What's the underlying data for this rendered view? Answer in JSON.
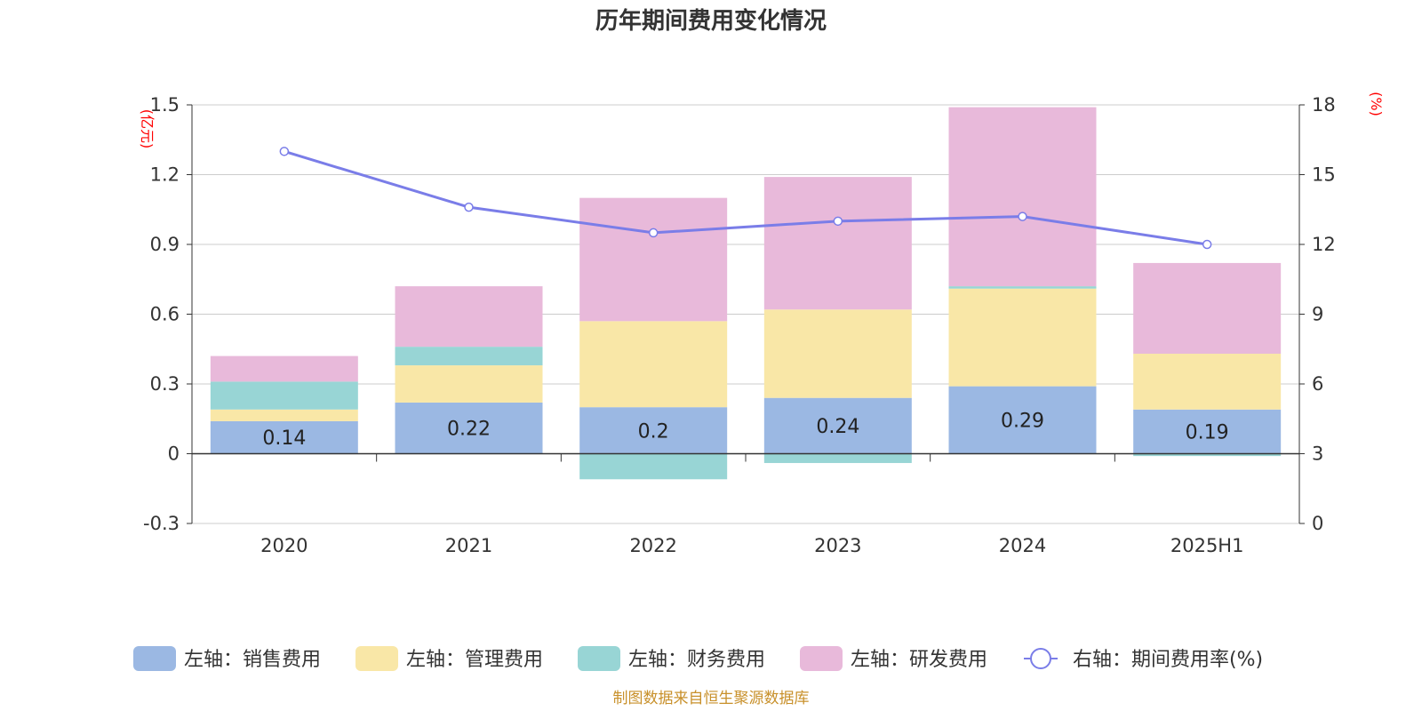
{
  "chart_data": {
    "type": "bar",
    "title": "历年期间费用变化情况",
    "categories": [
      "2020",
      "2021",
      "2022",
      "2023",
      "2024",
      "2025H1"
    ],
    "y_left": {
      "unit": "(亿元)",
      "range": [
        -0.3,
        1.5
      ],
      "ticks": [
        "-0.3",
        "0",
        "0.3",
        "0.6",
        "0.9",
        "1.2",
        "1.5"
      ]
    },
    "y_right": {
      "unit": "(%)",
      "range": [
        0,
        18
      ],
      "ticks": [
        "0",
        "3",
        "6",
        "9",
        "12",
        "15",
        "18"
      ]
    },
    "series": [
      {
        "name": "左轴：销售费用",
        "type": "bar",
        "stack": true,
        "color": "#9bb8e3",
        "values": [
          0.14,
          0.22,
          0.2,
          0.24,
          0.29,
          0.19
        ],
        "labels": [
          "0.14",
          "0.22",
          "0.2",
          "0.24",
          "0.29",
          "0.19"
        ]
      },
      {
        "name": "左轴：管理费用",
        "type": "bar",
        "stack": true,
        "color": "#f9e7a7",
        "values": [
          0.05,
          0.16,
          0.37,
          0.38,
          0.42,
          0.24
        ]
      },
      {
        "name": "左轴：财务费用",
        "type": "bar",
        "stack": true,
        "color": "#98d5d5",
        "values": [
          0.12,
          0.08,
          -0.11,
          -0.04,
          0.01,
          -0.01
        ]
      },
      {
        "name": "左轴：研发费用",
        "type": "bar",
        "stack": true,
        "color": "#e8b9da",
        "values": [
          0.11,
          0.26,
          0.53,
          0.57,
          0.77,
          0.39
        ]
      },
      {
        "name": "右轴：期间费用率(%)",
        "type": "line",
        "axis": "right",
        "color": "#7a7de8",
        "values": [
          16.0,
          13.6,
          12.5,
          13.0,
          13.2,
          12.0
        ]
      }
    ],
    "legend_position": "bottom",
    "grid": true
  },
  "source_text": "制图数据来自恒生聚源数据库"
}
